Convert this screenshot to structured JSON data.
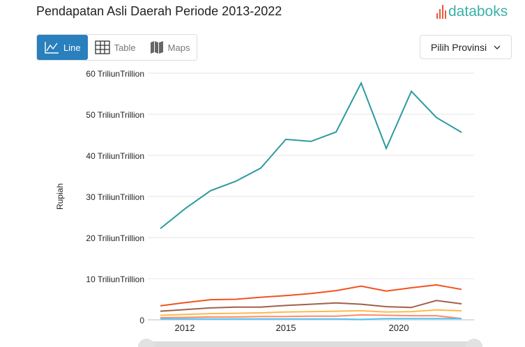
{
  "header": {
    "title": "Pendapatan Asli Daerah Periode 2013-2022",
    "logo": "databoks"
  },
  "view_toggle": {
    "line": "Line",
    "table": "Table",
    "maps": "Maps",
    "active": "Line"
  },
  "province_select": {
    "label": "Pilih Provinsi"
  },
  "chart_data": {
    "type": "line",
    "title": "Pendapatan Asli Daerah Periode 2013-2022",
    "ylabel": "Rupiah",
    "ylim": [
      0,
      60
    ],
    "y_ticks": [
      "0",
      "10 TriliunTrillion",
      "20 TriliunTrillion",
      "30 TriliunTrillion",
      "40 TriliunTrillion",
      "50 TriliunTrillion",
      "60 TriliunTrillion"
    ],
    "x_ticks": [
      "2012",
      "2015",
      "2020"
    ],
    "grid": true,
    "series": [
      {
        "color": "#2b9a9e",
        "values": [
          22.2,
          27.1,
          31.4,
          33.7,
          36.9,
          43.9,
          43.4,
          45.7,
          57.6,
          41.7,
          55.6,
          49.2,
          45.6
        ]
      },
      {
        "color": "#f4511e",
        "values": [
          3.4,
          4.2,
          4.9,
          5.0,
          5.5,
          5.9,
          6.4,
          7.1,
          8.2,
          7.0,
          7.8,
          8.5,
          7.4
        ]
      },
      {
        "color": "#a0604a",
        "values": [
          2.1,
          2.5,
          2.9,
          3.1,
          3.1,
          3.5,
          3.8,
          4.1,
          3.8,
          3.2,
          3.0,
          4.7,
          3.9
        ]
      },
      {
        "color": "#ffb74d",
        "values": [
          1.1,
          1.3,
          1.5,
          1.6,
          1.7,
          1.9,
          2.0,
          2.1,
          2.2,
          1.9,
          2.0,
          2.4,
          2.2
        ]
      },
      {
        "color": "#ff8a65",
        "values": [
          0.5,
          0.6,
          0.7,
          0.7,
          0.8,
          0.8,
          0.9,
          0.9,
          1.2,
          1.1,
          1.0,
          1.0,
          0.3
        ]
      },
      {
        "color": "#4fc3f7",
        "values": [
          0.2,
          0.2,
          0.2,
          0.2,
          0.2,
          0.2,
          0.2,
          0.2,
          0.1,
          0.3,
          0.3,
          0.3,
          0.3
        ]
      }
    ]
  }
}
